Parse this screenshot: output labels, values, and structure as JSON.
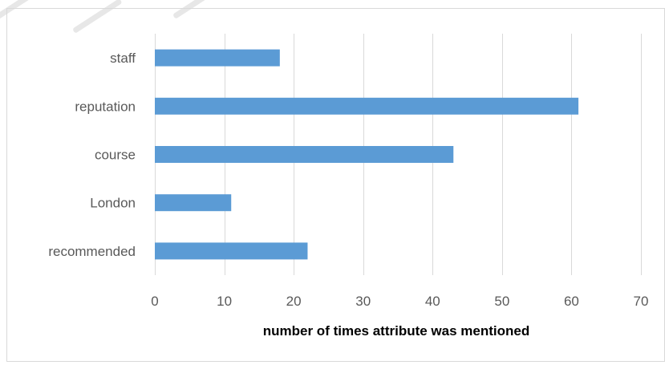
{
  "chart_data": {
    "type": "bar",
    "orientation": "horizontal",
    "categories": [
      "staff",
      "reputation",
      "course",
      "London",
      "recommended"
    ],
    "values": [
      18,
      61,
      43,
      11,
      22
    ],
    "title": "",
    "xlabel": "number of times attribute was mentioned",
    "ylabel": "",
    "xlim": [
      0,
      70
    ],
    "xticks": [
      0,
      10,
      20,
      30,
      40,
      50,
      60,
      70
    ],
    "grid": true,
    "legend": "none",
    "bar_color": "#5b9bd5",
    "grid_color": "#d9d9d9",
    "tick_label_color": "#595959"
  }
}
